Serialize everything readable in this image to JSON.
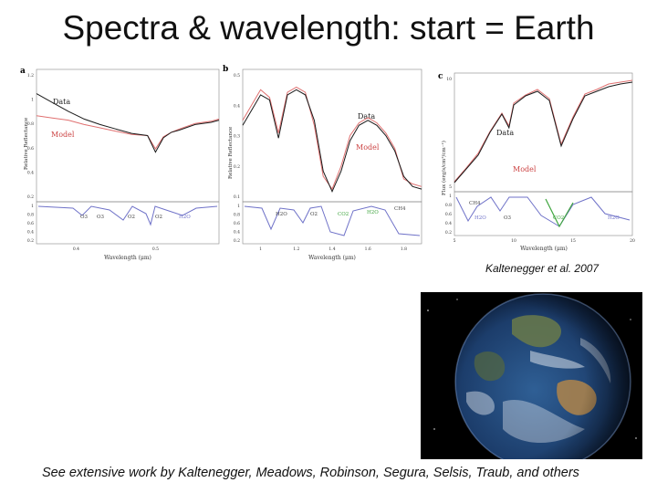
{
  "slide": {
    "title": "Spectra & wavelength: start = Earth",
    "citation": "Kaltenegger et al. 2007",
    "footer": "See extensive work by Kaltenegger, Meadows, Robinson, Segura, Selsis, Traub, and others"
  },
  "colors": {
    "data": "#1a1a1a",
    "model": "#e07070",
    "absorption": "#6f72c8",
    "co2": "#3fa53f"
  },
  "chart_data": [
    {
      "panel": "a",
      "type": "line",
      "xlabel": "Wavelength (μm)",
      "ylabel": "Relative Reflectance",
      "xticks": [
        "0.4",
        "0.5"
      ],
      "yticks": [
        "1.2",
        "1",
        "0.8",
        "0.6",
        "0.4",
        "0.2"
      ],
      "sub_yticks": [
        "1",
        "0.8",
        "0.6",
        "0.4",
        "0.2"
      ],
      "xlim": [
        0.35,
        0.58
      ],
      "ylim": [
        0,
        1.2
      ],
      "series": [
        {
          "name": "Data",
          "x": [
            0.35,
            0.37,
            0.39,
            0.41,
            0.43,
            0.45,
            0.47,
            0.49,
            0.5,
            0.51,
            0.52,
            0.53,
            0.55,
            0.57,
            0.58
          ],
          "y": [
            0.98,
            0.9,
            0.82,
            0.75,
            0.7,
            0.66,
            0.62,
            0.6,
            0.45,
            0.58,
            0.63,
            0.65,
            0.7,
            0.72,
            0.74
          ]
        },
        {
          "name": "Model",
          "x": [
            0.35,
            0.37,
            0.39,
            0.41,
            0.43,
            0.45,
            0.47,
            0.49,
            0.5,
            0.51,
            0.52,
            0.53,
            0.55,
            0.57,
            0.58
          ],
          "y": [
            0.78,
            0.76,
            0.74,
            0.7,
            0.67,
            0.64,
            0.61,
            0.6,
            0.48,
            0.59,
            0.63,
            0.66,
            0.71,
            0.73,
            0.75
          ]
        }
      ],
      "absorption_labels": [
        "O3",
        "O3",
        "O2",
        "O2",
        "H2O"
      ]
    },
    {
      "panel": "b",
      "type": "line",
      "xlabel": "Wavelength (μm)",
      "ylabel": "Relative Reflectance",
      "xticks": [
        "1",
        "1.2",
        "1.4",
        "1.6",
        "1.8"
      ],
      "yticks": [
        "0.5",
        "0.4",
        "0.3",
        "0.2",
        "0.1"
      ],
      "sub_yticks": [
        "1",
        "0.8",
        "0.6",
        "0.4",
        "0.2"
      ],
      "xlim": [
        0.9,
        1.9
      ],
      "ylim": [
        0,
        0.52
      ],
      "series": [
        {
          "name": "Data",
          "x": [
            0.9,
            0.95,
            1.0,
            1.05,
            1.1,
            1.15,
            1.2,
            1.25,
            1.3,
            1.35,
            1.4,
            1.45,
            1.5,
            1.55,
            1.6,
            1.65,
            1.7,
            1.75,
            1.8,
            1.85,
            1.9
          ],
          "y": [
            0.3,
            0.36,
            0.42,
            0.4,
            0.25,
            0.42,
            0.44,
            0.42,
            0.32,
            0.12,
            0.04,
            0.12,
            0.24,
            0.3,
            0.32,
            0.3,
            0.26,
            0.2,
            0.1,
            0.06,
            0.05
          ]
        },
        {
          "name": "Model",
          "x": [
            0.9,
            0.95,
            1.0,
            1.05,
            1.1,
            1.15,
            1.2,
            1.25,
            1.3,
            1.35,
            1.4,
            1.45,
            1.5,
            1.55,
            1.6,
            1.65,
            1.7,
            1.75,
            1.8,
            1.85,
            1.9
          ],
          "y": [
            0.32,
            0.38,
            0.44,
            0.41,
            0.27,
            0.43,
            0.45,
            0.43,
            0.3,
            0.1,
            0.05,
            0.14,
            0.26,
            0.31,
            0.33,
            0.31,
            0.27,
            0.21,
            0.09,
            0.07,
            0.06
          ]
        }
      ],
      "absorption_labels": [
        "H2O",
        "O2",
        "CO2",
        "H2O",
        "CH4"
      ]
    },
    {
      "panel": "c",
      "type": "line",
      "xlabel": "Wavelength (μm)",
      "ylabel": "Flux (erg/s/cm²/cm⁻¹)",
      "xticks": [
        "5",
        "10",
        "15",
        "20"
      ],
      "yticks": [
        "10",
        "5"
      ],
      "sub_yticks": [
        "1",
        "0.8",
        "0.6",
        "0.4",
        "0.2"
      ],
      "xlim": [
        5,
        20
      ],
      "ylim": [
        0,
        13
      ],
      "series": [
        {
          "name": "Data",
          "x": [
            5,
            6,
            7,
            8,
            9,
            9.6,
            10,
            11,
            12,
            13,
            14,
            15,
            16,
            17,
            18,
            19,
            20
          ],
          "y": [
            1,
            2.5,
            4,
            6.5,
            8.5,
            7,
            9.5,
            10.5,
            11,
            10,
            5,
            8,
            10.5,
            11,
            11.5,
            11.8,
            12
          ]
        },
        {
          "name": "Model",
          "x": [
            5,
            6,
            7,
            8,
            9,
            9.6,
            10,
            11,
            12,
            13,
            14,
            15,
            16,
            17,
            18,
            19,
            20
          ],
          "y": [
            1.1,
            2.6,
            4.2,
            6.6,
            8.6,
            7.2,
            9.7,
            10.6,
            11.2,
            10.2,
            5.2,
            8.2,
            10.7,
            11.2,
            11.8,
            12,
            12.2
          ]
        }
      ],
      "absorption_labels": [
        "H2O",
        "O3",
        "CO2",
        "H2O"
      ]
    }
  ],
  "panel_text": {
    "a": {
      "letter": "a",
      "data": "Data",
      "model": "Model",
      "sub": [
        "O3",
        "O3",
        "O2",
        "O2",
        "H2O"
      ]
    },
    "b": {
      "letter": "b",
      "data": "Data",
      "model": "Model",
      "sub": [
        "H2O",
        "O2",
        "CO2",
        "H2O",
        "CH4"
      ]
    },
    "c": {
      "letter": "c",
      "data": "Data",
      "model": "Model",
      "ch4": "CH4",
      "sub": [
        "H2O",
        "O3",
        "CO2",
        "H2O"
      ]
    }
  }
}
